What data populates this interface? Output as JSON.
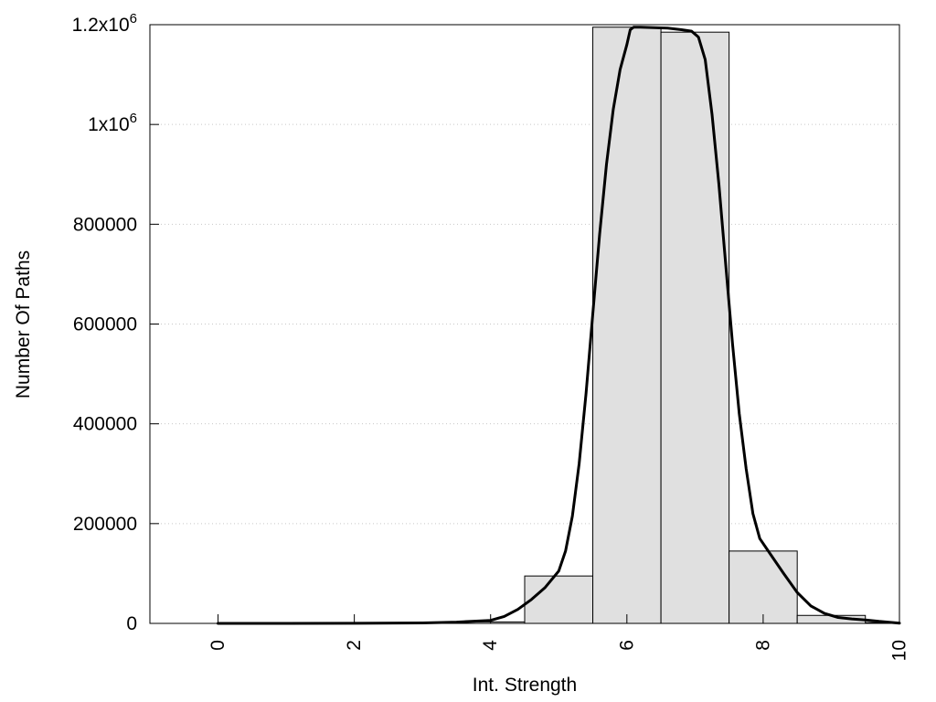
{
  "chart_data": {
    "type": "bar",
    "xlabel": "Int. Strength",
    "ylabel": "Number Of Paths",
    "xlim": [
      -1,
      10
    ],
    "ylim": [
      0,
      1200000
    ],
    "grid": "horizontal dotted",
    "x_ticks": [
      {
        "value": 0,
        "label": "0"
      },
      {
        "value": 2,
        "label": "2"
      },
      {
        "value": 4,
        "label": "4"
      },
      {
        "value": 6,
        "label": "6"
      },
      {
        "value": 8,
        "label": "8"
      },
      {
        "value": 10,
        "label": "10"
      }
    ],
    "y_ticks": [
      {
        "value": 0,
        "label": "0",
        "sup": ""
      },
      {
        "value": 200000,
        "label": "200000",
        "sup": ""
      },
      {
        "value": 400000,
        "label": "400000",
        "sup": ""
      },
      {
        "value": 600000,
        "label": "600000",
        "sup": ""
      },
      {
        "value": 800000,
        "label": "800000",
        "sup": ""
      },
      {
        "value": 1000000,
        "label": "1x10",
        "sup": "6"
      },
      {
        "value": 1200000,
        "label": "1.2x10",
        "sup": "6"
      }
    ],
    "bars": {
      "width": 1,
      "categories": [
        0,
        1,
        2,
        3,
        4,
        5,
        6,
        7,
        8,
        9,
        10
      ],
      "values": [
        0,
        0,
        0,
        0,
        3000,
        95000,
        1195000,
        1185000,
        145000,
        16000,
        1500
      ]
    },
    "curve": {
      "x": [
        0,
        1,
        2,
        3,
        3.5,
        4,
        4.2,
        4.4,
        4.6,
        4.8,
        5.0,
        5.1,
        5.2,
        5.3,
        5.4,
        5.5,
        5.6,
        5.7,
        5.8,
        5.9,
        6.0,
        6.05,
        6.1,
        6.2,
        6.4,
        6.6,
        6.8,
        6.95,
        7.05,
        7.15,
        7.25,
        7.35,
        7.45,
        7.55,
        7.65,
        7.75,
        7.85,
        7.95,
        8.1,
        8.3,
        8.5,
        8.7,
        8.9,
        9.1,
        9.3,
        9.5,
        9.7,
        10
      ],
      "y": [
        0,
        0,
        200,
        1000,
        2500,
        6000,
        14000,
        28000,
        48000,
        72000,
        105000,
        145000,
        215000,
        320000,
        460000,
        620000,
        780000,
        920000,
        1030000,
        1110000,
        1160000,
        1190000,
        1195000,
        1195000,
        1194000,
        1193000,
        1190000,
        1187000,
        1175000,
        1130000,
        1020000,
        880000,
        720000,
        560000,
        420000,
        310000,
        220000,
        170000,
        140000,
        100000,
        62000,
        35000,
        20000,
        12000,
        9000,
        7000,
        4000,
        500
      ]
    }
  }
}
